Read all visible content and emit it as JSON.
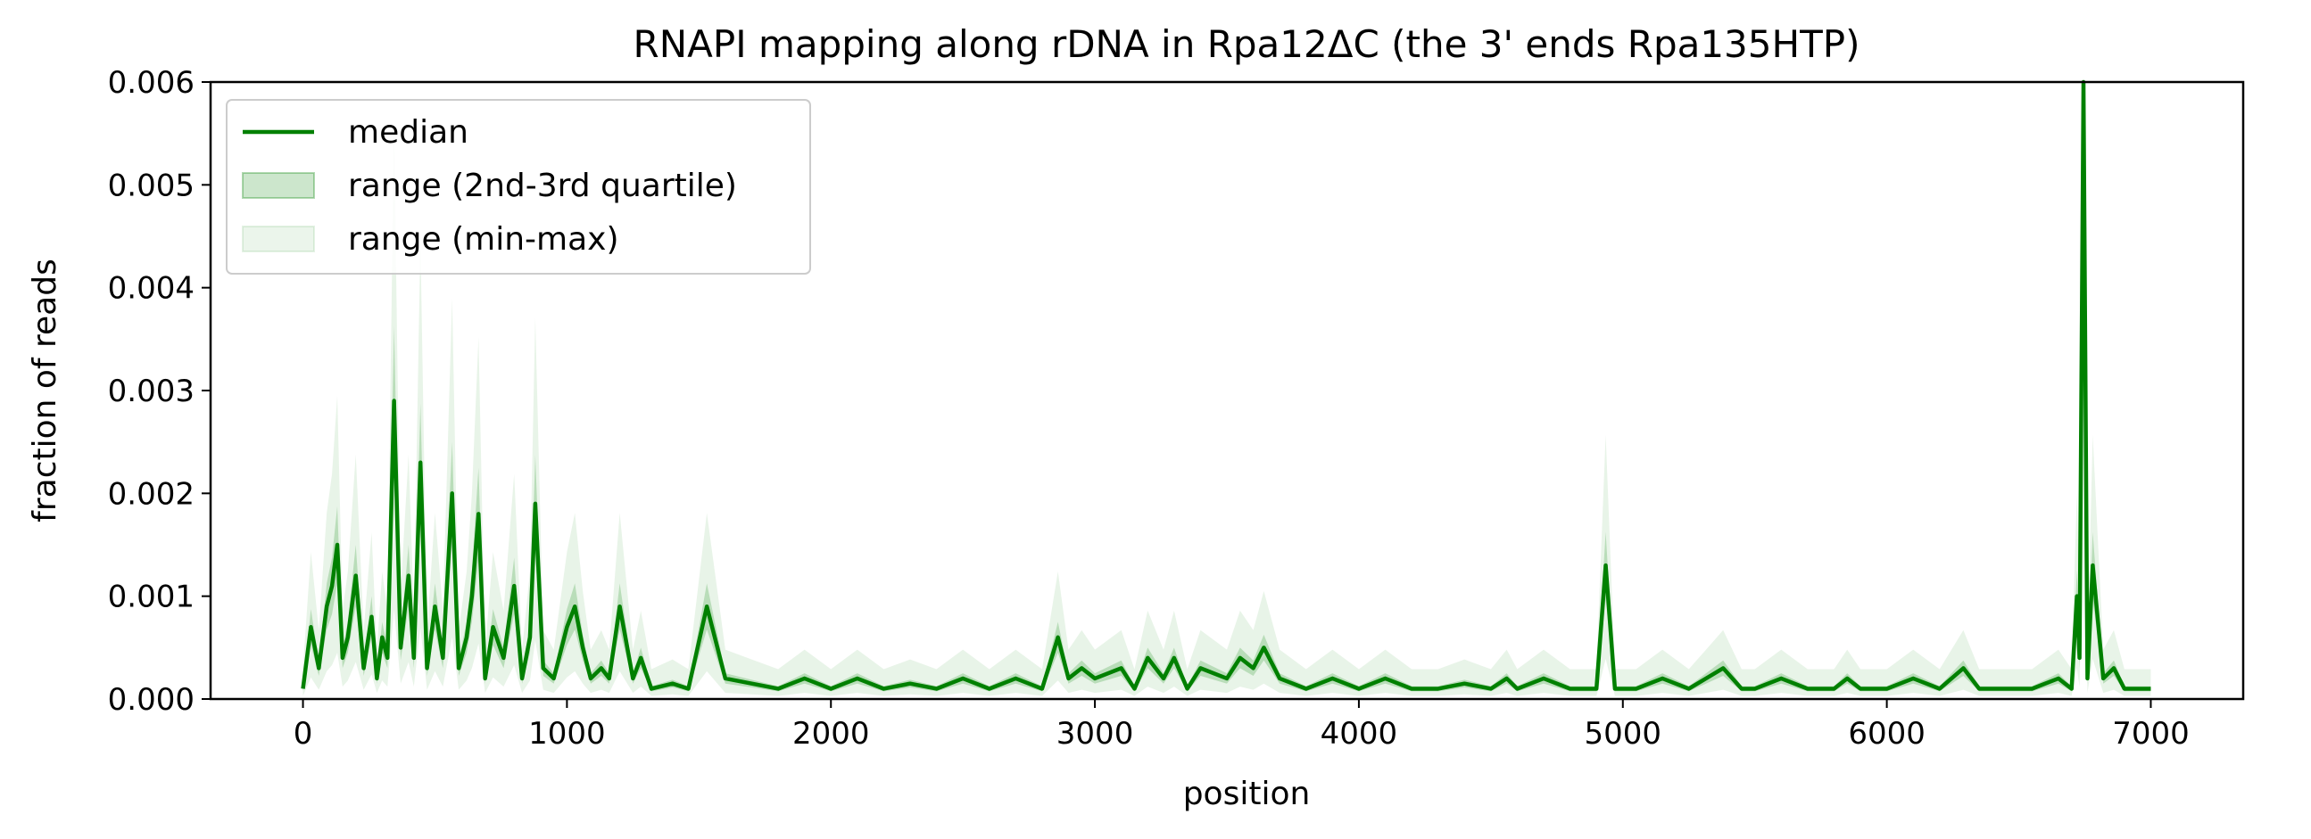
{
  "chart_data": {
    "type": "line",
    "title": "RNAPI mapping along rDNA in Rpa12ΔC (the 3' ends Rpa135HTP)",
    "xlabel": "position",
    "ylabel": "fraction of reads",
    "xlim": [
      -350,
      7350
    ],
    "ylim": [
      0,
      0.006
    ],
    "xticks": [
      0,
      1000,
      2000,
      3000,
      4000,
      5000,
      6000,
      7000
    ],
    "xtick_labels": [
      "0",
      "1000",
      "2000",
      "3000",
      "4000",
      "5000",
      "6000",
      "7000"
    ],
    "yticks": [
      0.0,
      0.001,
      0.002,
      0.003,
      0.004,
      0.005,
      0.006
    ],
    "ytick_labels": [
      "0.000",
      "0.001",
      "0.002",
      "0.003",
      "0.004",
      "0.005",
      "0.006"
    ],
    "grid": false,
    "legend_position": "top-left",
    "colors": {
      "median": "#008000",
      "quartile_fill": "#008000",
      "minmax_fill": "#008000"
    },
    "legend": [
      {
        "label": "median",
        "kind": "line"
      },
      {
        "label": "range (2nd-3rd quartile)",
        "kind": "fill-quartile"
      },
      {
        "label": "range (min-max)",
        "kind": "fill-minmax"
      }
    ],
    "series": [
      {
        "name": "median",
        "x": [
          0,
          30,
          60,
          90,
          110,
          130,
          150,
          170,
          200,
          230,
          260,
          280,
          300,
          320,
          345,
          370,
          400,
          420,
          445,
          470,
          500,
          530,
          565,
          590,
          620,
          640,
          665,
          690,
          720,
          760,
          800,
          830,
          860,
          880,
          910,
          950,
          1000,
          1030,
          1060,
          1090,
          1130,
          1160,
          1200,
          1250,
          1280,
          1320,
          1400,
          1460,
          1530,
          1600,
          1700,
          1800,
          1900,
          2000,
          2100,
          2200,
          2300,
          2400,
          2500,
          2600,
          2700,
          2800,
          2860,
          2900,
          2950,
          3000,
          3100,
          3150,
          3200,
          3260,
          3300,
          3350,
          3400,
          3500,
          3550,
          3600,
          3640,
          3700,
          3800,
          3900,
          4000,
          4100,
          4200,
          4300,
          4400,
          4500,
          4560,
          4600,
          4700,
          4800,
          4900,
          4935,
          4970,
          5050,
          5150,
          5250,
          5380,
          5450,
          5500,
          5600,
          5700,
          5800,
          5850,
          5900,
          6000,
          6100,
          6200,
          6290,
          6350,
          6450,
          6550,
          6650,
          6700,
          6720,
          6730,
          6745,
          6760,
          6780,
          6820,
          6860,
          6900,
          7000
        ],
        "values": [
          0.0001,
          0.0007,
          0.0003,
          0.0009,
          0.0011,
          0.0015,
          0.0004,
          0.0006,
          0.0012,
          0.0003,
          0.0008,
          0.0002,
          0.0006,
          0.0004,
          0.0029,
          0.0005,
          0.0012,
          0.0004,
          0.0023,
          0.0003,
          0.0009,
          0.0004,
          0.002,
          0.0003,
          0.0006,
          0.001,
          0.0018,
          0.0002,
          0.0007,
          0.0004,
          0.0011,
          0.0002,
          0.0006,
          0.0019,
          0.0003,
          0.0002,
          0.0007,
          0.0009,
          0.0005,
          0.0002,
          0.0003,
          0.0002,
          0.0009,
          0.0002,
          0.0004,
          0.0001,
          0.00015,
          0.0001,
          0.0009,
          0.0002,
          0.00015,
          0.0001,
          0.0002,
          0.0001,
          0.0002,
          0.0001,
          0.00015,
          0.0001,
          0.0002,
          0.0001,
          0.0002,
          0.0001,
          0.0006,
          0.0002,
          0.0003,
          0.0002,
          0.0003,
          0.0001,
          0.0004,
          0.0002,
          0.0004,
          0.0001,
          0.0003,
          0.0002,
          0.0004,
          0.0003,
          0.0005,
          0.0002,
          0.0001,
          0.0002,
          0.0001,
          0.0002,
          0.0001,
          0.0001,
          0.00015,
          0.0001,
          0.0002,
          0.0001,
          0.0002,
          0.0001,
          0.0001,
          0.0013,
          0.0001,
          0.0001,
          0.0002,
          0.0001,
          0.0003,
          0.0001,
          0.0001,
          0.0002,
          0.0001,
          0.0001,
          0.0002,
          0.0001,
          0.0001,
          0.0002,
          0.0001,
          0.0003,
          0.0001,
          0.0001,
          0.0001,
          0.0002,
          0.0001,
          0.001,
          0.0004,
          0.006,
          0.0002,
          0.0013,
          0.0002,
          0.0003,
          0.0001,
          0.0001
        ]
      }
    ]
  }
}
